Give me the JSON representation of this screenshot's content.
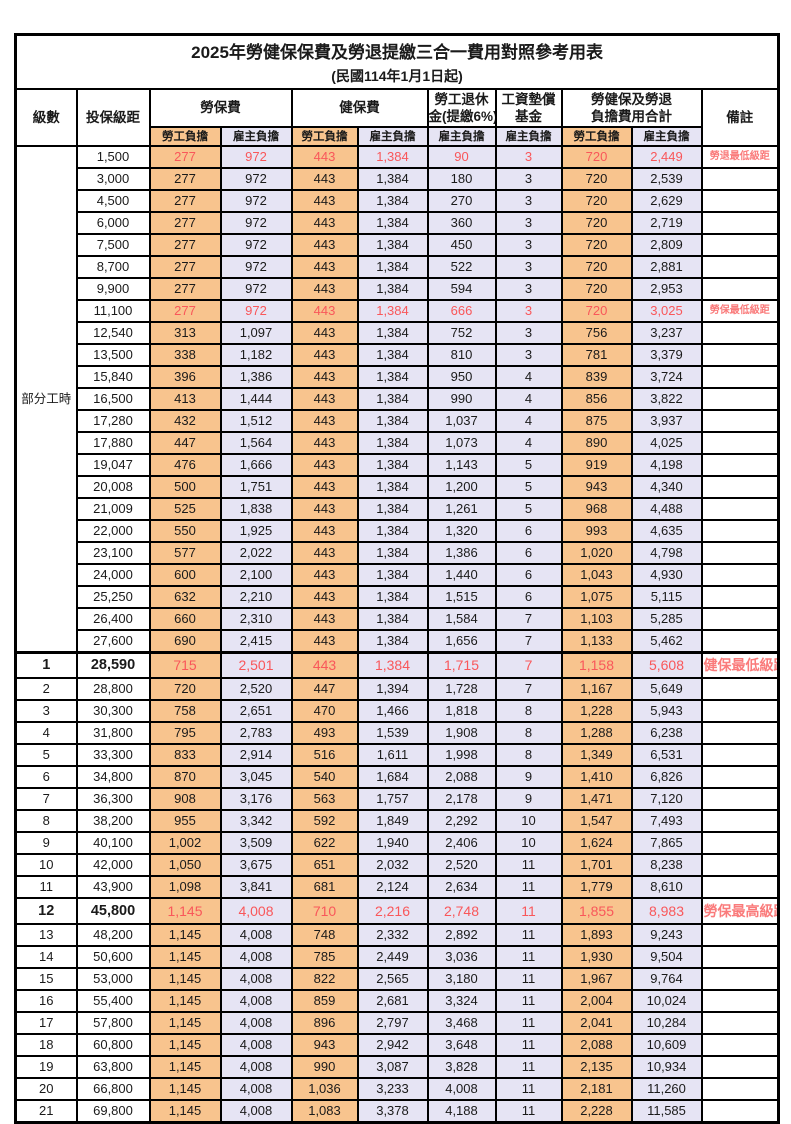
{
  "title": "2025年勞健保保費及勞退提繳三合一費用對照參考用表",
  "subtitle": "(民國114年1月1日起)",
  "columns": {
    "level": "級數",
    "bracket": "投保級距",
    "labor_insurance": "勞保費",
    "health_insurance": "健保費",
    "pension_line1": "勞工退休",
    "pension_line2": "金(提繳6%)",
    "wage_fund_line1": "工資墊償",
    "wage_fund_line2": "基金",
    "total_line1": "勞健保及勞退",
    "total_line2": "負擔費用合計",
    "employee_label": "勞工負擔",
    "employer_label": "雇主負擔",
    "remarks": "備註"
  },
  "part_time_label": "部分工時",
  "part_time_row_count": 23,
  "colors": {
    "employee_bg": "#F8C48E",
    "employer_bg": "#E6E4F4",
    "highlight_red": "#F9575A",
    "note_red": "#FA7B7B",
    "border": "#000000"
  },
  "row_fields": [
    "level",
    "bracket",
    "labor_employee",
    "labor_employer",
    "health_employee",
    "health_employer",
    "pension_employer",
    "fund_employer",
    "total_employee",
    "total_employer",
    "note"
  ],
  "red_rows": [
    0,
    7,
    23,
    34
  ],
  "emphasis_rows": [
    23,
    34
  ],
  "rows": [
    [
      "",
      "1,500",
      "277",
      "972",
      "443",
      "1,384",
      "90",
      "3",
      "720",
      "2,449",
      "勞退最低級距"
    ],
    [
      "",
      "3,000",
      "277",
      "972",
      "443",
      "1,384",
      "180",
      "3",
      "720",
      "2,539",
      ""
    ],
    [
      "",
      "4,500",
      "277",
      "972",
      "443",
      "1,384",
      "270",
      "3",
      "720",
      "2,629",
      ""
    ],
    [
      "",
      "6,000",
      "277",
      "972",
      "443",
      "1,384",
      "360",
      "3",
      "720",
      "2,719",
      ""
    ],
    [
      "",
      "7,500",
      "277",
      "972",
      "443",
      "1,384",
      "450",
      "3",
      "720",
      "2,809",
      ""
    ],
    [
      "",
      "8,700",
      "277",
      "972",
      "443",
      "1,384",
      "522",
      "3",
      "720",
      "2,881",
      ""
    ],
    [
      "",
      "9,900",
      "277",
      "972",
      "443",
      "1,384",
      "594",
      "3",
      "720",
      "2,953",
      ""
    ],
    [
      "",
      "11,100",
      "277",
      "972",
      "443",
      "1,384",
      "666",
      "3",
      "720",
      "3,025",
      "勞保最低級距"
    ],
    [
      "",
      "12,540",
      "313",
      "1,097",
      "443",
      "1,384",
      "752",
      "3",
      "756",
      "3,237",
      ""
    ],
    [
      "",
      "13,500",
      "338",
      "1,182",
      "443",
      "1,384",
      "810",
      "3",
      "781",
      "3,379",
      ""
    ],
    [
      "",
      "15,840",
      "396",
      "1,386",
      "443",
      "1,384",
      "950",
      "4",
      "839",
      "3,724",
      ""
    ],
    [
      "",
      "16,500",
      "413",
      "1,444",
      "443",
      "1,384",
      "990",
      "4",
      "856",
      "3,822",
      ""
    ],
    [
      "",
      "17,280",
      "432",
      "1,512",
      "443",
      "1,384",
      "1,037",
      "4",
      "875",
      "3,937",
      ""
    ],
    [
      "",
      "17,880",
      "447",
      "1,564",
      "443",
      "1,384",
      "1,073",
      "4",
      "890",
      "4,025",
      ""
    ],
    [
      "",
      "19,047",
      "476",
      "1,666",
      "443",
      "1,384",
      "1,143",
      "5",
      "919",
      "4,198",
      ""
    ],
    [
      "",
      "20,008",
      "500",
      "1,751",
      "443",
      "1,384",
      "1,200",
      "5",
      "943",
      "4,340",
      ""
    ],
    [
      "",
      "21,009",
      "525",
      "1,838",
      "443",
      "1,384",
      "1,261",
      "5",
      "968",
      "4,488",
      ""
    ],
    [
      "",
      "22,000",
      "550",
      "1,925",
      "443",
      "1,384",
      "1,320",
      "6",
      "993",
      "4,635",
      ""
    ],
    [
      "",
      "23,100",
      "577",
      "2,022",
      "443",
      "1,384",
      "1,386",
      "6",
      "1,020",
      "4,798",
      ""
    ],
    [
      "",
      "24,000",
      "600",
      "2,100",
      "443",
      "1,384",
      "1,440",
      "6",
      "1,043",
      "4,930",
      ""
    ],
    [
      "",
      "25,250",
      "632",
      "2,210",
      "443",
      "1,384",
      "1,515",
      "6",
      "1,075",
      "5,115",
      ""
    ],
    [
      "",
      "26,400",
      "660",
      "2,310",
      "443",
      "1,384",
      "1,584",
      "7",
      "1,103",
      "5,285",
      ""
    ],
    [
      "",
      "27,600",
      "690",
      "2,415",
      "443",
      "1,384",
      "1,656",
      "7",
      "1,133",
      "5,462",
      ""
    ],
    [
      "1",
      "28,590",
      "715",
      "2,501",
      "443",
      "1,384",
      "1,715",
      "7",
      "1,158",
      "5,608",
      "健保最低級距"
    ],
    [
      "2",
      "28,800",
      "720",
      "2,520",
      "447",
      "1,394",
      "1,728",
      "7",
      "1,167",
      "5,649",
      ""
    ],
    [
      "3",
      "30,300",
      "758",
      "2,651",
      "470",
      "1,466",
      "1,818",
      "8",
      "1,228",
      "5,943",
      ""
    ],
    [
      "4",
      "31,800",
      "795",
      "2,783",
      "493",
      "1,539",
      "1,908",
      "8",
      "1,288",
      "6,238",
      ""
    ],
    [
      "5",
      "33,300",
      "833",
      "2,914",
      "516",
      "1,611",
      "1,998",
      "8",
      "1,349",
      "6,531",
      ""
    ],
    [
      "6",
      "34,800",
      "870",
      "3,045",
      "540",
      "1,684",
      "2,088",
      "9",
      "1,410",
      "6,826",
      ""
    ],
    [
      "7",
      "36,300",
      "908",
      "3,176",
      "563",
      "1,757",
      "2,178",
      "9",
      "1,471",
      "7,120",
      ""
    ],
    [
      "8",
      "38,200",
      "955",
      "3,342",
      "592",
      "1,849",
      "2,292",
      "10",
      "1,547",
      "7,493",
      ""
    ],
    [
      "9",
      "40,100",
      "1,002",
      "3,509",
      "622",
      "1,940",
      "2,406",
      "10",
      "1,624",
      "7,865",
      ""
    ],
    [
      "10",
      "42,000",
      "1,050",
      "3,675",
      "651",
      "2,032",
      "2,520",
      "11",
      "1,701",
      "8,238",
      ""
    ],
    [
      "11",
      "43,900",
      "1,098",
      "3,841",
      "681",
      "2,124",
      "2,634",
      "11",
      "1,779",
      "8,610",
      ""
    ],
    [
      "12",
      "45,800",
      "1,145",
      "4,008",
      "710",
      "2,216",
      "2,748",
      "11",
      "1,855",
      "8,983",
      "勞保最高級距"
    ],
    [
      "13",
      "48,200",
      "1,145",
      "4,008",
      "748",
      "2,332",
      "2,892",
      "11",
      "1,893",
      "9,243",
      ""
    ],
    [
      "14",
      "50,600",
      "1,145",
      "4,008",
      "785",
      "2,449",
      "3,036",
      "11",
      "1,930",
      "9,504",
      ""
    ],
    [
      "15",
      "53,000",
      "1,145",
      "4,008",
      "822",
      "2,565",
      "3,180",
      "11",
      "1,967",
      "9,764",
      ""
    ],
    [
      "16",
      "55,400",
      "1,145",
      "4,008",
      "859",
      "2,681",
      "3,324",
      "11",
      "2,004",
      "10,024",
      ""
    ],
    [
      "17",
      "57,800",
      "1,145",
      "4,008",
      "896",
      "2,797",
      "3,468",
      "11",
      "2,041",
      "10,284",
      ""
    ],
    [
      "18",
      "60,800",
      "1,145",
      "4,008",
      "943",
      "2,942",
      "3,648",
      "11",
      "2,088",
      "10,609",
      ""
    ],
    [
      "19",
      "63,800",
      "1,145",
      "4,008",
      "990",
      "3,087",
      "3,828",
      "11",
      "2,135",
      "10,934",
      ""
    ],
    [
      "20",
      "66,800",
      "1,145",
      "4,008",
      "1,036",
      "3,233",
      "4,008",
      "11",
      "2,181",
      "11,260",
      ""
    ],
    [
      "21",
      "69,800",
      "1,145",
      "4,008",
      "1,083",
      "3,378",
      "4,188",
      "11",
      "2,228",
      "11,585",
      ""
    ]
  ]
}
